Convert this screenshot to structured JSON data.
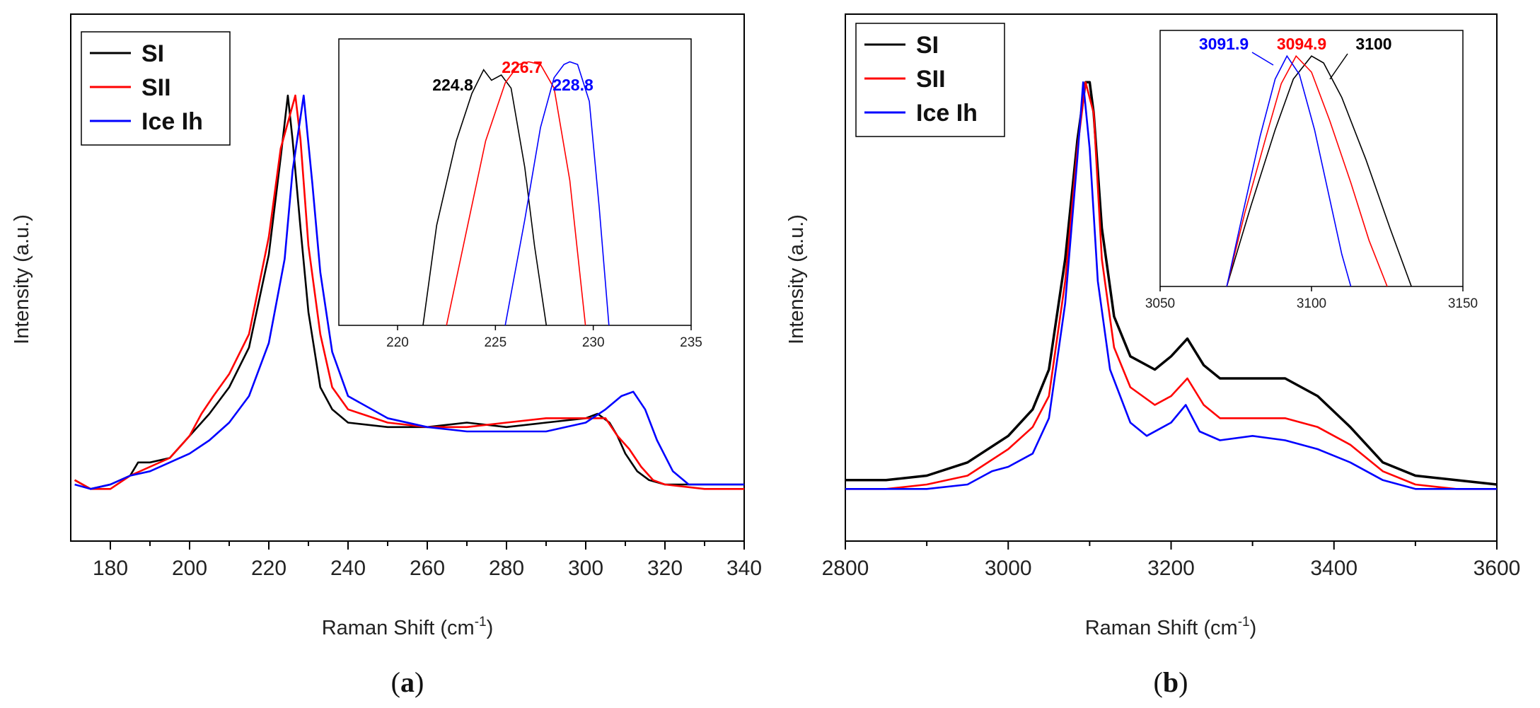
{
  "chart_data": [
    {
      "type": "line",
      "panel": "(a)",
      "caption_letter": "a",
      "xlabel": "Raman Shift (cm",
      "xlabel_sup": "-1",
      "xlabel_close": ")",
      "ylabel": "Intensity (a.u.)",
      "xlim": [
        170,
        340
      ],
      "xticks": [
        180,
        200,
        220,
        240,
        260,
        280,
        300,
        320,
        340
      ],
      "legend_position": "top-left",
      "series": [
        {
          "name": "SI",
          "color": "#000000",
          "x": [
            171,
            175,
            180,
            185,
            187,
            190,
            195,
            200,
            205,
            210,
            215,
            220,
            223,
            224.8,
            226,
            228,
            230,
            233,
            236,
            240,
            250,
            260,
            270,
            280,
            290,
            300,
            303,
            306,
            308,
            310,
            313,
            316,
            320,
            330,
            340
          ],
          "y": [
            0.05,
            0.03,
            0.04,
            0.06,
            0.09,
            0.09,
            0.1,
            0.15,
            0.2,
            0.26,
            0.35,
            0.56,
            0.78,
            0.92,
            0.82,
            0.62,
            0.43,
            0.26,
            0.21,
            0.18,
            0.17,
            0.17,
            0.18,
            0.17,
            0.18,
            0.19,
            0.2,
            0.18,
            0.15,
            0.11,
            0.07,
            0.05,
            0.04,
            0.04,
            0.04
          ]
        },
        {
          "name": "SII",
          "color": "#ff0000",
          "x": [
            171,
            175,
            180,
            185,
            190,
            195,
            200,
            203,
            206,
            210,
            215,
            220,
            223,
            226.7,
            228,
            230,
            233,
            236,
            240,
            250,
            260,
            270,
            280,
            290,
            300,
            305,
            308,
            311,
            314,
            317,
            320,
            330,
            340
          ],
          "y": [
            0.05,
            0.03,
            0.03,
            0.06,
            0.08,
            0.1,
            0.15,
            0.2,
            0.24,
            0.29,
            0.38,
            0.6,
            0.8,
            0.92,
            0.82,
            0.58,
            0.38,
            0.26,
            0.21,
            0.18,
            0.17,
            0.17,
            0.18,
            0.19,
            0.19,
            0.19,
            0.15,
            0.12,
            0.08,
            0.05,
            0.04,
            0.03,
            0.03
          ]
        },
        {
          "name": "Ice Ih",
          "color": "#0000ff",
          "x": [
            171,
            175,
            180,
            185,
            190,
            195,
            200,
            205,
            210,
            215,
            220,
            224,
            226,
            228.8,
            231,
            233,
            236,
            240,
            250,
            260,
            270,
            280,
            290,
            300,
            305,
            309,
            312,
            315,
            318,
            322,
            326,
            330,
            340
          ],
          "y": [
            0.04,
            0.03,
            0.04,
            0.06,
            0.07,
            0.09,
            0.11,
            0.14,
            0.18,
            0.24,
            0.36,
            0.55,
            0.75,
            0.92,
            0.72,
            0.52,
            0.34,
            0.24,
            0.19,
            0.17,
            0.16,
            0.16,
            0.16,
            0.18,
            0.21,
            0.24,
            0.25,
            0.21,
            0.14,
            0.07,
            0.04,
            0.04,
            0.04
          ]
        }
      ],
      "inset": {
        "xlim": [
          217,
          235
        ],
        "xticks": [
          220,
          225,
          230,
          235
        ],
        "annotations": [
          {
            "text": "224.8",
            "color": "#000000"
          },
          {
            "text": "226.7",
            "color": "#ff0000"
          },
          {
            "text": "228.8",
            "color": "#0000ff"
          }
        ],
        "series": [
          {
            "name": "SI",
            "color": "#000000",
            "x": [
              221.3,
              222,
              223,
              223.8,
              224.4,
              224.8,
              225.3,
              225.8,
              226.5,
              227,
              227.6
            ],
            "y": [
              0.0,
              0.38,
              0.7,
              0.88,
              0.97,
              0.93,
              0.95,
              0.9,
              0.6,
              0.3,
              0.0
            ]
          },
          {
            "name": "SII",
            "color": "#ff0000",
            "x": [
              222.5,
              223.5,
              224.5,
              225.5,
              226.2,
              226.7,
              227.3,
              228,
              228.8,
              229.6
            ],
            "y": [
              0.0,
              0.35,
              0.7,
              0.92,
              0.99,
              1.0,
              0.99,
              0.9,
              0.55,
              0.0
            ]
          },
          {
            "name": "Ice Ih",
            "color": "#0000ff",
            "x": [
              225.5,
              226.5,
              227.3,
              228,
              228.5,
              228.8,
              229.2,
              229.8,
              230.3,
              230.8
            ],
            "y": [
              0.0,
              0.4,
              0.75,
              0.94,
              0.99,
              1.0,
              0.99,
              0.85,
              0.45,
              0.0
            ]
          }
        ]
      }
    },
    {
      "type": "line",
      "panel": "(b)",
      "caption_letter": "b",
      "xlabel": "Raman Shift (cm",
      "xlabel_sup": "-1",
      "xlabel_close": ")",
      "ylabel": "Intensity (a.u.)",
      "xlim": [
        2800,
        3600
      ],
      "xticks": [
        2800,
        3000,
        3200,
        3400,
        3600
      ],
      "legend_position": "top-left",
      "series": [
        {
          "name": "SI",
          "color": "#000000",
          "x": [
            2800,
            2850,
            2900,
            2950,
            3000,
            3030,
            3050,
            3070,
            3085,
            3095,
            3100,
            3105,
            3115,
            3130,
            3150,
            3180,
            3200,
            3220,
            3240,
            3260,
            3300,
            3340,
            3380,
            3420,
            3460,
            3500,
            3550,
            3600
          ],
          "y": [
            0.05,
            0.05,
            0.06,
            0.09,
            0.15,
            0.21,
            0.3,
            0.55,
            0.82,
            0.95,
            0.95,
            0.88,
            0.62,
            0.42,
            0.33,
            0.3,
            0.33,
            0.37,
            0.31,
            0.28,
            0.28,
            0.28,
            0.24,
            0.17,
            0.09,
            0.06,
            0.05,
            0.04
          ]
        },
        {
          "name": "SII",
          "color": "#ff0000",
          "x": [
            2800,
            2850,
            2900,
            2950,
            3000,
            3030,
            3050,
            3070,
            3085,
            3095,
            3105,
            3115,
            3130,
            3150,
            3180,
            3200,
            3220,
            3240,
            3260,
            3300,
            3340,
            3380,
            3420,
            3460,
            3500,
            3550,
            3600
          ],
          "y": [
            0.03,
            0.03,
            0.04,
            0.06,
            0.12,
            0.17,
            0.24,
            0.5,
            0.8,
            0.95,
            0.88,
            0.55,
            0.35,
            0.26,
            0.22,
            0.24,
            0.28,
            0.22,
            0.19,
            0.19,
            0.19,
            0.17,
            0.13,
            0.07,
            0.04,
            0.03,
            0.03
          ]
        },
        {
          "name": "Ice Ih",
          "color": "#0000ff",
          "x": [
            2800,
            2850,
            2900,
            2950,
            2980,
            3000,
            3030,
            3050,
            3070,
            3085,
            3092,
            3100,
            3110,
            3125,
            3150,
            3170,
            3200,
            3218,
            3235,
            3260,
            3300,
            3340,
            3380,
            3420,
            3460,
            3500,
            3550,
            3600
          ],
          "y": [
            0.03,
            0.03,
            0.03,
            0.04,
            0.07,
            0.08,
            0.11,
            0.19,
            0.45,
            0.78,
            0.95,
            0.8,
            0.5,
            0.3,
            0.18,
            0.15,
            0.18,
            0.22,
            0.16,
            0.14,
            0.15,
            0.14,
            0.12,
            0.09,
            0.05,
            0.03,
            0.03,
            0.03
          ]
        }
      ],
      "inset": {
        "xlim": [
          3050,
          3150
        ],
        "xticks": [
          3050,
          3100,
          3150
        ],
        "annotations": [
          {
            "text": "3091.9",
            "color": "#0000ff"
          },
          {
            "text": "3094.9",
            "color": "#ff0000"
          },
          {
            "text": "3100",
            "color": "#000000"
          }
        ],
        "series": [
          {
            "name": "SI",
            "color": "#000000",
            "x": [
              3072,
              3080,
              3088,
              3094,
              3100,
              3104,
              3110,
              3118,
              3126,
              3133
            ],
            "y": [
              0.0,
              0.35,
              0.68,
              0.9,
              1.0,
              0.97,
              0.82,
              0.55,
              0.25,
              0.0
            ]
          },
          {
            "name": "SII",
            "color": "#ff0000",
            "x": [
              3072,
              3078,
              3085,
              3090,
              3094.9,
              3100,
              3106,
              3113,
              3119,
              3125
            ],
            "y": [
              0.0,
              0.32,
              0.65,
              0.88,
              1.0,
              0.93,
              0.72,
              0.45,
              0.2,
              0.0
            ]
          },
          {
            "name": "Ice Ih",
            "color": "#0000ff",
            "x": [
              3072,
              3077,
              3083,
              3088,
              3091.9,
              3096,
              3101,
              3106,
              3110,
              3113
            ],
            "y": [
              0.0,
              0.3,
              0.65,
              0.9,
              1.0,
              0.92,
              0.68,
              0.38,
              0.14,
              0.0
            ]
          }
        ]
      }
    }
  ]
}
